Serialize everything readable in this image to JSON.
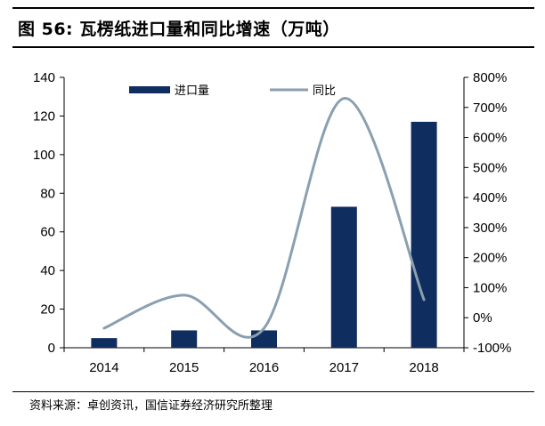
{
  "title": "图 56: 瓦楞纸进口量和同比增速（万吨）",
  "source": "资料来源：卓创资讯，国信证券经济研究所整理",
  "colors": {
    "bar": "#0f2d5e",
    "line": "#8a9fb0",
    "axis": "#000000"
  },
  "chart_data": {
    "type": "bar",
    "categories": [
      "2014",
      "2015",
      "2016",
      "2017",
      "2018"
    ],
    "series": [
      {
        "name": "进口量",
        "type": "bar",
        "axis": "left",
        "values": [
          5,
          9,
          9,
          73,
          117
        ]
      },
      {
        "name": "同比",
        "type": "line",
        "axis": "right",
        "values": [
          -35,
          75,
          -35,
          730,
          60
        ]
      }
    ],
    "left_axis": {
      "ylim": [
        0,
        140
      ],
      "ticks": [
        "0",
        "20",
        "40",
        "60",
        "80",
        "100",
        "120",
        "140"
      ]
    },
    "right_axis": {
      "ylim": [
        -100,
        800
      ],
      "ticks": [
        "-100%",
        "0%",
        "100%",
        "200%",
        "300%",
        "400%",
        "500%",
        "600%",
        "700%",
        "800%"
      ]
    },
    "legend": {
      "placement": "top",
      "items": [
        "进口量",
        "同比"
      ]
    },
    "grid": false
  }
}
